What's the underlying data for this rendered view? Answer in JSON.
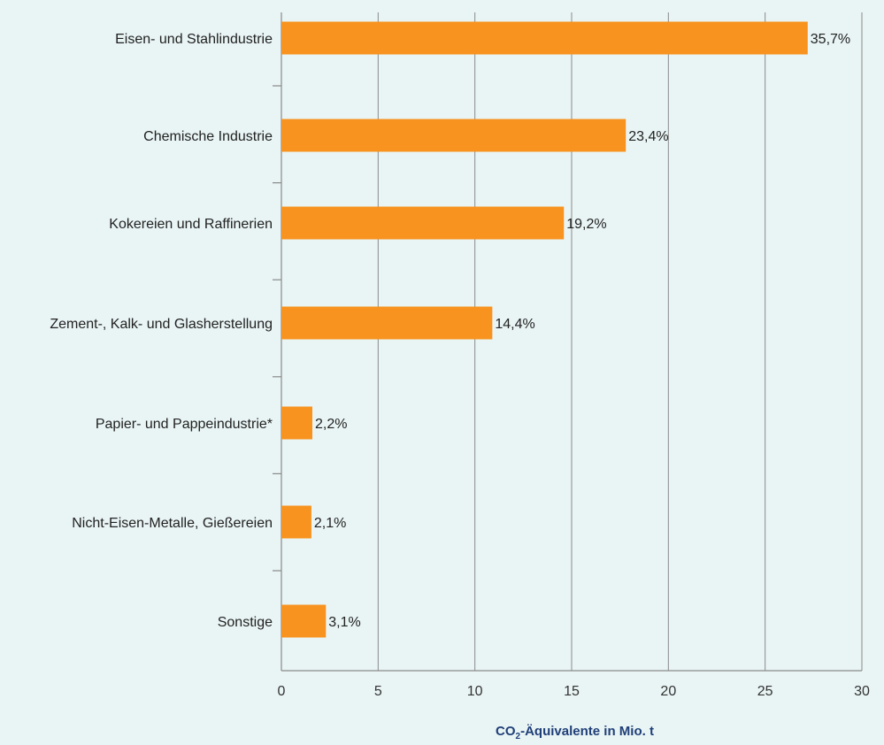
{
  "chart_data": {
    "type": "bar",
    "orientation": "horizontal",
    "categories": [
      "Eisen- und Stahlindustrie",
      "Chemische Industrie",
      "Kokereien und Raffinerien",
      "Zement-, Kalk- und Glasherstellung",
      "Papier- und Pappeindustrie*",
      "Nicht-Eisen-Metalle, Gießereien",
      "Sonstige"
    ],
    "values": [
      27.2,
      17.8,
      14.6,
      10.9,
      1.6,
      1.55,
      2.3
    ],
    "data_labels": [
      "35,7%",
      "23,4%",
      "19,2%",
      "14,4%",
      "2,2%",
      "2,1%",
      "3,1%"
    ],
    "xlim": [
      0,
      30
    ],
    "xticks": [
      0,
      5,
      10,
      15,
      20,
      25,
      30
    ],
    "xlabel_main": "CO",
    "xlabel_sub": "2",
    "xlabel_rest": "-Äquivalente in Mio. t",
    "grid": "vertical",
    "colors": {
      "bar": "#f7931e",
      "background": "#e9f4f4",
      "axis_title": "#1f3f78"
    }
  }
}
